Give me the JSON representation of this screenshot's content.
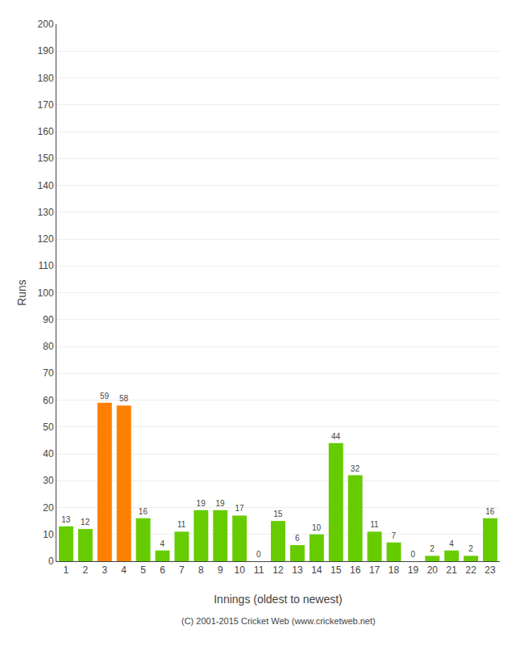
{
  "chart_data": {
    "type": "bar",
    "xlabel": "Innings (oldest to newest)",
    "ylabel": "Runs",
    "categories": [
      1,
      2,
      3,
      4,
      5,
      6,
      7,
      8,
      9,
      10,
      11,
      12,
      13,
      14,
      15,
      16,
      17,
      18,
      19,
      20,
      21,
      22,
      23
    ],
    "values": [
      13,
      12,
      59,
      58,
      16,
      4,
      11,
      19,
      19,
      17,
      0,
      15,
      6,
      10,
      44,
      32,
      11,
      7,
      0,
      2,
      4,
      2,
      16
    ],
    "colors": [
      "#66cc00",
      "#66cc00",
      "#ff8000",
      "#ff8000",
      "#66cc00",
      "#66cc00",
      "#66cc00",
      "#66cc00",
      "#66cc00",
      "#66cc00",
      "#66cc00",
      "#66cc00",
      "#66cc00",
      "#66cc00",
      "#66cc00",
      "#66cc00",
      "#66cc00",
      "#66cc00",
      "#66cc00",
      "#66cc00",
      "#66cc00",
      "#66cc00",
      "#66cc00"
    ],
    "ylim": [
      0,
      200
    ],
    "yticks": [
      0,
      10,
      20,
      30,
      40,
      50,
      60,
      70,
      80,
      90,
      100,
      110,
      120,
      130,
      140,
      150,
      160,
      170,
      180,
      190,
      200
    ],
    "grid": true,
    "data_labels": true,
    "annotations": [
      {
        "text": "(C) 2001-2015 Cricket Web (www.cricketweb.net)"
      }
    ]
  }
}
